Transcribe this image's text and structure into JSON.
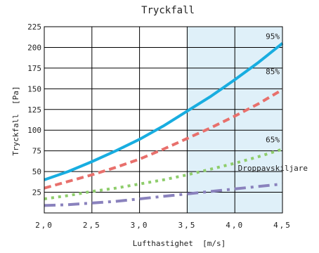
{
  "chart_data": {
    "type": "line",
    "title": "Tryckfall",
    "xlabel": "Lufthastighet  [m/s]",
    "ylabel": "Tryckfall  [Pa]",
    "xlim": [
      2.0,
      4.5
    ],
    "ylim": [
      0,
      225
    ],
    "x_ticks": [
      2.0,
      2.5,
      3.0,
      3.5,
      4.0,
      4.5
    ],
    "x_tick_labels": [
      "2,0",
      "2,5",
      "3,0",
      "3,5",
      "4,0",
      "4,5"
    ],
    "y_ticks": [
      25,
      50,
      75,
      100,
      125,
      150,
      175,
      200,
      225
    ],
    "y_tick_labels": [
      "25",
      "50",
      "75",
      "100",
      "125",
      "150",
      "175",
      "200",
      "225"
    ],
    "grid": true,
    "highlight_band": {
      "x_from": 3.5,
      "x_to": 4.5,
      "color": "#dff0f9"
    },
    "series": [
      {
        "name": "95%",
        "color": "#18ade0",
        "style": "solid",
        "x": [
          2.0,
          2.25,
          2.5,
          2.75,
          3.0,
          3.25,
          3.5,
          3.75,
          4.0,
          4.25,
          4.5
        ],
        "y": [
          40,
          50,
          62,
          75,
          89,
          105,
          123,
          141,
          161,
          182,
          205
        ]
      },
      {
        "name": "85%",
        "color": "#e8706c",
        "style": "dash",
        "x": [
          2.0,
          2.25,
          2.5,
          2.75,
          3.0,
          3.25,
          3.5,
          3.75,
          4.0,
          4.25,
          4.5
        ],
        "y": [
          30,
          38,
          46,
          55,
          65,
          77,
          90,
          103,
          117,
          132,
          149
        ]
      },
      {
        "name": "65%",
        "color": "#8ecd6b",
        "style": "dot",
        "x": [
          2.0,
          2.25,
          2.5,
          2.75,
          3.0,
          3.25,
          3.5,
          3.75,
          4.0,
          4.25,
          4.5
        ],
        "y": [
          17,
          21,
          26,
          30,
          35,
          40,
          46,
          53,
          60,
          68,
          77
        ]
      },
      {
        "name": "Droppavskiljare",
        "color": "#8a82bd",
        "style": "dashdot",
        "x": [
          2.0,
          2.25,
          2.5,
          2.75,
          3.0,
          3.25,
          3.5,
          3.75,
          4.0,
          4.25,
          4.5
        ],
        "y": [
          9,
          10,
          12,
          14,
          17,
          20,
          23,
          26,
          29,
          32,
          35
        ]
      }
    ]
  }
}
